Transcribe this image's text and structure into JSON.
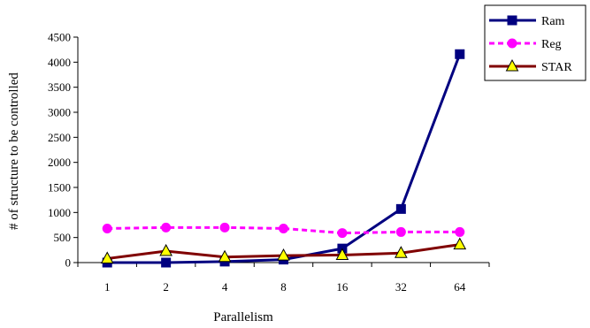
{
  "chart_data": {
    "type": "line",
    "title": "",
    "xlabel": "Parallelism",
    "ylabel": "# of structure to be controlled",
    "categories": [
      "1",
      "2",
      "4",
      "8",
      "16",
      "32",
      "64"
    ],
    "ylim": [
      0,
      4500
    ],
    "yticks": [
      0,
      500,
      1000,
      1500,
      2000,
      2500,
      3000,
      3500,
      4000,
      4500
    ],
    "grid": false,
    "legend_position": "top-right",
    "series": [
      {
        "name": "Ram",
        "values": [
          0,
          0,
          20,
          60,
          280,
          1070,
          4160
        ],
        "color": "#000080",
        "line_style": "solid",
        "marker": "square"
      },
      {
        "name": "Reg",
        "values": [
          680,
          700,
          700,
          680,
          590,
          610,
          610
        ],
        "color": "#ff00ff",
        "line_style": "dashed",
        "marker": "circle"
      },
      {
        "name": "STAR",
        "values": [
          80,
          230,
          110,
          140,
          150,
          190,
          360
        ],
        "color": "#800000",
        "line_style": "solid",
        "marker": "triangle",
        "marker_fill": "#ffff00"
      }
    ]
  }
}
